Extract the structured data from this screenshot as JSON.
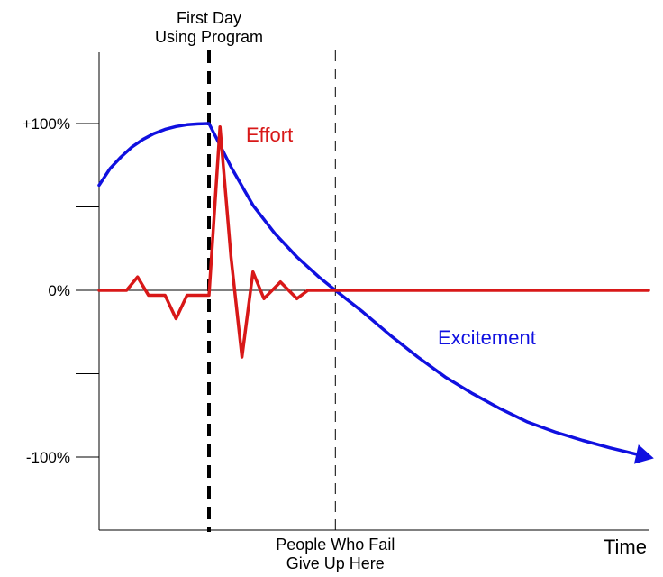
{
  "chart_data": {
    "type": "line",
    "xlabel": "Time",
    "ylabel": "",
    "ylim": [
      -100,
      100
    ],
    "y_ticks": [
      100,
      50,
      0,
      -50,
      -100
    ],
    "y_tick_labels": [
      "+100%",
      "",
      "0%",
      "",
      "-100%"
    ],
    "grid": false,
    "markers": [
      {
        "label": "First Day\nUsing Program",
        "label_lines": [
          "First Day",
          "Using Program"
        ],
        "x": 20,
        "style": "bold-dashed"
      },
      {
        "label": "People Who Fail\nGive Up Here",
        "label_lines": [
          "People Who Fail",
          "Give Up Here"
        ],
        "x": 43,
        "style": "thin-dashed"
      }
    ],
    "xlim": [
      0,
      100
    ],
    "series": [
      {
        "name": "Excitement",
        "color": "#1010e0",
        "arrow": true,
        "x": [
          0,
          2,
          4,
          6,
          8,
          10,
          12,
          14,
          16,
          18,
          20,
          24,
          28,
          32,
          36,
          40,
          43,
          48,
          53,
          58,
          63,
          68,
          73,
          78,
          83,
          88,
          93,
          98,
          100
        ],
        "y": [
          63,
          73,
          80,
          86,
          90.5,
          94,
          96.5,
          98.2,
          99.3,
          99.8,
          100,
          74,
          51,
          34,
          20,
          8,
          0,
          -13,
          -27,
          -40,
          -52,
          -62,
          -71,
          -79,
          -85,
          -90,
          -94.5,
          -98.5,
          -100
        ]
      },
      {
        "name": "Effort",
        "color": "#d81818",
        "arrow": false,
        "x": [
          0,
          5,
          7,
          9,
          12,
          14,
          16,
          20,
          22,
          24,
          26,
          28,
          30,
          33,
          36,
          38,
          40,
          42,
          43,
          100
        ],
        "y": [
          0,
          0,
          8,
          -3,
          -3,
          -17,
          -3,
          -3,
          98,
          20,
          -40,
          11,
          -5,
          5,
          -5,
          0,
          0,
          0,
          0,
          0
        ]
      }
    ]
  }
}
